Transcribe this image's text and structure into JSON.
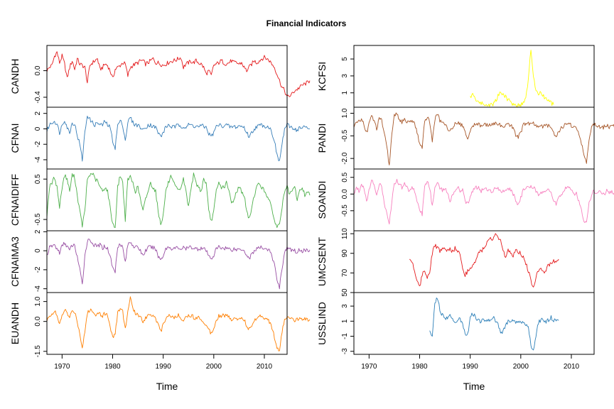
{
  "title": "Financial Indicators",
  "chart_data": {
    "type": "line",
    "title": "Financial Indicators",
    "xlabel": "Time",
    "x_ticks": [
      1970,
      1980,
      1990,
      2000,
      2010
    ],
    "xlim": [
      1967,
      2014.5
    ],
    "panels": [
      {
        "name": "CANDH",
        "column": "left",
        "color": "#e41a1c",
        "ylim": [
          -0.55,
          0.38
        ],
        "yticks": [
          -0.4,
          0.0
        ],
        "ytick_labels": [
          "-0.4",
          "0.0"
        ],
        "start": 1967,
        "values": [
          0.0,
          0.05,
          0.08,
          0.22,
          0.28,
          0.12,
          0.22,
          0.1,
          -0.12,
          0.05,
          0.15,
          0.02,
          0.18,
          0.1,
          0.08,
          0.05,
          -0.18,
          0.08,
          0.12,
          0.15,
          0.18,
          0.02,
          0.05,
          0.1,
          0.08,
          0.0,
          -0.12,
          0.02,
          0.05,
          0.08,
          0.12,
          0.1,
          -0.08,
          0.05,
          0.08,
          0.1,
          0.12,
          0.15,
          0.15,
          0.1,
          0.12,
          0.15,
          0.18,
          0.12,
          0.12,
          0.1,
          0.08,
          0.1,
          0.12,
          0.14,
          0.15,
          0.16,
          0.18,
          0.2,
          0.05,
          0.1,
          0.12,
          0.14,
          0.12,
          0.15,
          0.12,
          0.1,
          0.05,
          -0.05,
          0.0,
          -0.08,
          0.08,
          0.1,
          0.12,
          0.15,
          0.12,
          0.1,
          0.12,
          0.15,
          0.12,
          0.12,
          0.1,
          0.12,
          0.05,
          0.0,
          0.05,
          0.1,
          0.15,
          0.12,
          0.15,
          0.18,
          0.2,
          0.18,
          0.15,
          0.1,
          0.05,
          -0.05,
          -0.15,
          -0.25,
          -0.3,
          -0.4,
          -0.38,
          -0.35,
          -0.3,
          -0.28,
          -0.25,
          -0.22,
          -0.2,
          -0.18,
          -0.15
        ]
      },
      {
        "name": "CFNAI",
        "column": "left",
        "color": "#377eb8",
        "ylim": [
          -5.2,
          2.8
        ],
        "yticks": [
          -4,
          -2,
          0,
          2
        ],
        "ytick_labels": [
          "-4",
          "-2",
          "0",
          "2"
        ],
        "start": 1967,
        "values": [
          -0.3,
          0.5,
          0.8,
          1.0,
          0.6,
          -0.5,
          0.5,
          1.2,
          0.2,
          -0.5,
          0.8,
          0.6,
          -0.8,
          -2.0,
          -4.0,
          -0.5,
          1.8,
          1.2,
          0.8,
          0.5,
          0.8,
          0.5,
          0.5,
          1.0,
          0.5,
          0.2,
          -1.5,
          -2.5,
          0.5,
          1.0,
          0.5,
          -1.5,
          0.8,
          1.5,
          0.8,
          0.5,
          0.5,
          0.2,
          -0.2,
          0.2,
          0.5,
          0.5,
          0.3,
          0.2,
          -0.5,
          -1.0,
          -0.5,
          0.2,
          0.5,
          0.3,
          0.2,
          0.3,
          0.5,
          0.4,
          0.3,
          0.2,
          0.5,
          0.5,
          0.4,
          0.3,
          0.3,
          0.4,
          0.3,
          0.2,
          -0.6,
          -1.0,
          -0.5,
          0.3,
          0.5,
          0.4,
          0.4,
          0.5,
          0.3,
          0.2,
          0.3,
          0.2,
          0.4,
          0.3,
          0.2,
          -0.5,
          -1.0,
          -0.5,
          0.0,
          0.3,
          0.4,
          0.5,
          0.4,
          0.3,
          0.2,
          -0.5,
          -1.5,
          -3.5,
          -4.2,
          -2.0,
          0.0,
          0.5,
          0.3,
          0.2,
          0.0,
          -0.2,
          0.2,
          0.0,
          0.3,
          0.1,
          0.0
        ]
      },
      {
        "name": "CFNAIDIFF",
        "column": "left",
        "color": "#4daf4a",
        "ylim": [
          -0.78,
          0.75
        ],
        "yticks": [
          -0.5,
          0.5
        ],
        "ytick_labels": [
          "-0.5",
          "0.5"
        ],
        "start": 1967,
        "values": [
          -0.4,
          0.3,
          0.4,
          0.55,
          0.3,
          -0.2,
          0.3,
          0.6,
          0.5,
          0.2,
          0.6,
          0.55,
          0.1,
          -0.3,
          -0.65,
          -0.3,
          0.5,
          0.6,
          0.65,
          0.5,
          0.45,
          0.3,
          0.2,
          0.3,
          0.2,
          -0.2,
          -0.6,
          -0.7,
          0.3,
          0.6,
          0.4,
          -0.5,
          0.5,
          0.55,
          0.4,
          0.2,
          0.3,
          0.0,
          -0.3,
          0.0,
          0.2,
          0.4,
          0.3,
          0.2,
          -0.3,
          -0.6,
          -0.4,
          0.2,
          0.4,
          0.55,
          0.4,
          0.3,
          0.2,
          0.3,
          0.5,
          0.2,
          -0.2,
          0.3,
          0.6,
          0.4,
          0.3,
          0.2,
          0.5,
          0.4,
          -0.3,
          -0.55,
          -0.3,
          0.2,
          0.4,
          0.3,
          0.3,
          0.4,
          0.2,
          -0.1,
          0.0,
          0.2,
          0.3,
          0.2,
          0.1,
          -0.3,
          -0.5,
          -0.2,
          0.1,
          0.3,
          0.4,
          0.3,
          0.2,
          0.1,
          0.0,
          -0.3,
          -0.5,
          -0.7,
          -0.6,
          -0.2,
          0.2,
          0.3,
          0.1,
          0.2,
          0.3,
          0.0,
          0.2,
          0.3,
          0.1,
          0.2,
          0.1
        ]
      },
      {
        "name": "CFNAIMA3",
        "column": "left",
        "color": "#984ea3",
        "ylim": [
          -4.4,
          2.1
        ],
        "yticks": [
          -4,
          -2,
          0,
          2
        ],
        "ytick_labels": [
          "-4",
          "-2",
          "0",
          "2"
        ],
        "start": 1967,
        "values": [
          -0.5,
          0.3,
          0.5,
          0.6,
          0.2,
          -0.2,
          0.5,
          0.8,
          0.5,
          0.0,
          0.6,
          0.5,
          -0.6,
          -2.0,
          -3.6,
          -0.5,
          1.0,
          1.2,
          0.8,
          0.5,
          0.5,
          0.6,
          0.3,
          0.5,
          0.2,
          -0.5,
          -1.8,
          -2.2,
          0.5,
          0.8,
          0.3,
          -1.2,
          0.6,
          1.0,
          0.6,
          0.3,
          0.4,
          0.0,
          -0.5,
          0.0,
          0.3,
          0.4,
          0.3,
          0.2,
          -0.6,
          -0.9,
          -0.5,
          0.2,
          0.4,
          0.3,
          0.2,
          0.3,
          0.3,
          0.2,
          0.3,
          0.2,
          0.3,
          0.4,
          0.3,
          0.2,
          0.2,
          0.3,
          0.2,
          0.0,
          -0.6,
          -0.8,
          -0.5,
          0.2,
          0.4,
          0.3,
          0.3,
          0.3,
          0.2,
          0.1,
          0.2,
          0.1,
          0.2,
          0.2,
          0.1,
          -0.5,
          -0.8,
          -0.4,
          0.0,
          0.2,
          0.3,
          0.3,
          0.3,
          0.2,
          0.0,
          -0.6,
          -1.5,
          -3.0,
          -3.8,
          -1.8,
          -0.2,
          0.3,
          0.1,
          0.1,
          0.0,
          -0.1,
          0.1,
          0.0,
          0.1,
          0.0,
          0.1
        ]
      },
      {
        "name": "EUANDH",
        "column": "left",
        "color": "#ff7f00",
        "ylim": [
          -1.65,
          1.45
        ],
        "yticks": [
          -1.5,
          0.0,
          1.0
        ],
        "ytick_labels": [
          "-1.5",
          "0.0",
          "1.0"
        ],
        "start": 1967,
        "values": [
          0.0,
          0.3,
          0.4,
          0.5,
          0.3,
          -0.2,
          0.3,
          0.6,
          0.4,
          0.2,
          0.5,
          0.5,
          0.0,
          -0.6,
          -1.3,
          -0.5,
          0.4,
          0.6,
          0.5,
          0.3,
          0.5,
          0.4,
          0.3,
          0.4,
          0.3,
          -0.2,
          -0.8,
          -0.6,
          0.4,
          0.7,
          0.5,
          -0.4,
          0.5,
          1.2,
          0.6,
          0.4,
          0.4,
          0.2,
          0.0,
          0.2,
          0.3,
          0.4,
          0.3,
          0.2,
          -0.2,
          -0.5,
          -0.2,
          0.2,
          0.3,
          0.3,
          0.2,
          0.2,
          0.3,
          0.2,
          0.1,
          0.2,
          0.3,
          0.3,
          0.2,
          0.2,
          0.2,
          0.1,
          0.0,
          -0.2,
          -0.4,
          -0.6,
          -0.3,
          0.1,
          0.3,
          0.3,
          0.3,
          0.3,
          0.2,
          0.1,
          0.2,
          0.1,
          0.2,
          0.2,
          0.1,
          -0.2,
          -0.4,
          -0.2,
          0.0,
          0.2,
          0.3,
          0.3,
          0.2,
          0.1,
          0.0,
          -0.3,
          -0.8,
          -1.4,
          -1.5,
          -0.5,
          0.1,
          0.2,
          0.1,
          0.1,
          0.0,
          0.1,
          0.2,
          0.1,
          0.2,
          0.1,
          0.1
        ]
      },
      {
        "name": "KCFSI",
        "column": "right",
        "color": "#ffff00",
        "ylim": [
          -0.7,
          6.6
        ],
        "yticks": [
          1,
          3,
          5
        ],
        "ytick_labels": [
          "1",
          "3",
          "5"
        ],
        "start": 1990,
        "values": [
          0.5,
          0.8,
          0.3,
          0.0,
          -0.2,
          -0.3,
          -0.4,
          -0.5,
          -0.4,
          -0.3,
          0.0,
          0.6,
          1.2,
          0.9,
          0.5,
          0.2,
          -0.1,
          -0.3,
          -0.4,
          -0.5,
          -0.4,
          -0.2,
          0.5,
          2.5,
          6.2,
          3.0,
          1.2,
          0.8,
          1.0,
          0.6,
          0.3,
          0.0,
          -0.2,
          -0.4
        ]
      },
      {
        "name": "PANDI",
        "column": "right",
        "color": "#a65628",
        "ylim": [
          -2.7,
          1.4
        ],
        "yticks": [
          -2.0,
          -0.5,
          1.0
        ],
        "ytick_labels": [
          "-2.0",
          "-0.5",
          "1.0"
        ],
        "start": 1967,
        "values": [
          0.0,
          0.4,
          0.5,
          0.6,
          0.3,
          -0.3,
          0.3,
          0.8,
          0.5,
          0.0,
          0.6,
          0.5,
          -0.4,
          -1.2,
          -2.5,
          -0.3,
          0.8,
          1.0,
          0.6,
          0.4,
          0.6,
          0.4,
          0.3,
          0.6,
          0.3,
          -0.3,
          -1.0,
          -1.2,
          0.4,
          0.8,
          0.4,
          -0.8,
          0.5,
          1.0,
          0.5,
          0.3,
          0.3,
          0.1,
          -0.3,
          0.1,
          0.3,
          0.4,
          0.3,
          0.2,
          -0.3,
          -0.6,
          -0.3,
          0.2,
          0.3,
          0.3,
          0.2,
          0.2,
          0.3,
          0.2,
          0.2,
          0.2,
          0.3,
          0.3,
          0.2,
          0.2,
          0.2,
          0.3,
          0.2,
          0.0,
          -0.4,
          -0.6,
          -0.3,
          0.2,
          0.3,
          0.3,
          0.3,
          0.3,
          0.2,
          0.1,
          0.2,
          0.1,
          0.2,
          0.2,
          0.1,
          -0.3,
          -0.5,
          -0.2,
          0.0,
          0.2,
          0.3,
          0.3,
          0.2,
          0.1,
          0.0,
          -0.4,
          -1.0,
          -1.8,
          -2.2,
          -0.8,
          0.0,
          0.3,
          0.1,
          0.1,
          0.0,
          0.1,
          0.2,
          0.1,
          0.2,
          0.1,
          0.1
        ]
      },
      {
        "name": "SOANDI",
        "column": "right",
        "color": "#f781bf",
        "ylim": [
          -1.1,
          0.75
        ],
        "yticks": [
          -0.5,
          0.0,
          0.5
        ],
        "ytick_labels": [
          "-0.5",
          "0.0",
          "0.5"
        ],
        "start": 1967,
        "values": [
          0.0,
          0.2,
          0.1,
          0.3,
          0.2,
          -0.2,
          0.1,
          0.4,
          0.3,
          0.0,
          0.3,
          0.2,
          -0.3,
          -0.5,
          -0.9,
          -0.2,
          0.3,
          0.4,
          0.3,
          0.2,
          0.3,
          0.2,
          0.1,
          0.2,
          0.1,
          -0.2,
          -0.5,
          -0.6,
          0.2,
          0.4,
          0.2,
          -0.4,
          0.2,
          0.4,
          0.2,
          0.1,
          0.2,
          0.0,
          -0.2,
          0.0,
          0.1,
          0.2,
          0.1,
          0.1,
          -0.2,
          -0.3,
          -0.1,
          0.1,
          0.2,
          0.2,
          0.1,
          0.1,
          0.2,
          0.1,
          0.1,
          0.1,
          0.2,
          0.2,
          0.1,
          0.1,
          0.1,
          0.2,
          0.1,
          0.0,
          -0.2,
          -0.3,
          -0.1,
          0.1,
          0.2,
          0.2,
          0.2,
          0.2,
          0.1,
          0.0,
          0.1,
          0.0,
          0.1,
          0.1,
          0.0,
          -0.2,
          -0.3,
          -0.1,
          0.0,
          0.1,
          0.2,
          0.2,
          0.1,
          0.0,
          0.0,
          -0.2,
          -0.5,
          -0.8,
          -0.9,
          -0.3,
          0.0,
          0.1,
          0.0,
          0.1,
          0.0,
          0.0,
          0.1,
          0.0,
          0.1,
          0.0,
          0.0
        ]
      },
      {
        "name": "UMCSENT",
        "column": "right",
        "color": "#e41a1c",
        "ylim": [
          50,
          113
        ],
        "yticks": [
          50,
          70,
          90,
          110
        ],
        "ytick_labels": [
          "50",
          "70",
          "90",
          "110"
        ],
        "start": 1978,
        "values": [
          84,
          82,
          72,
          62,
          56,
          68,
          72,
          66,
          72,
          90,
          98,
          96,
          92,
          95,
          94,
          92,
          94,
          92,
          95,
          92,
          90,
          76,
          68,
          72,
          76,
          78,
          80,
          90,
          92,
          94,
          96,
          102,
          106,
          104,
          108,
          106,
          102,
          92,
          86,
          94,
          90,
          88,
          94,
          92,
          90,
          86,
          80,
          72,
          62,
          56,
          66,
          72,
          76,
          70,
          74,
          78,
          80,
          82,
          80,
          84
        ]
      },
      {
        "name": "USSLIND",
        "column": "right",
        "color": "#2c7fb8",
        "ylim": [
          -3.4,
          4.8
        ],
        "yticks": [
          -3,
          -1,
          1,
          3
        ],
        "ytick_labels": [
          "-3",
          "-1",
          "1",
          "3"
        ],
        "start": 1982,
        "values": [
          -0.5,
          -1.0,
          3.5,
          4.2,
          2.5,
          1.8,
          1.2,
          1.5,
          1.8,
          1.2,
          0.8,
          1.0,
          1.4,
          0.6,
          -0.5,
          -0.8,
          1.5,
          2.0,
          1.6,
          1.2,
          1.0,
          1.4,
          1.2,
          0.9,
          1.3,
          1.6,
          1.0,
          0.5,
          -0.5,
          -0.3,
          0.5,
          1.0,
          1.2,
          1.0,
          0.8,
          1.1,
          1.0,
          0.8,
          0.5,
          0.0,
          -2.0,
          -3.1,
          -1.0,
          0.8,
          1.2,
          1.0,
          0.9,
          1.2,
          1.5,
          1.0,
          1.3,
          1.1
        ]
      }
    ]
  }
}
